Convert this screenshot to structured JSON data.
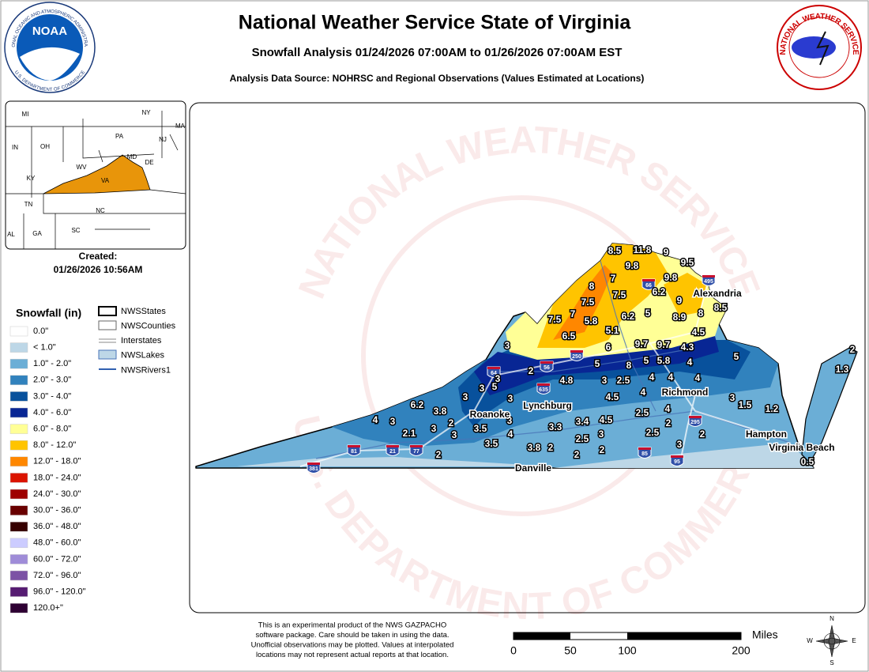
{
  "header": {
    "title": "National Weather Service State of Virginia",
    "subtitle": "Snowfall Analysis 01/24/2026 07:00AM to 01/26/2026 07:00AM EST",
    "source": "Analysis Data Source: NOHRSC and Regional Observations (Values Estimated at Locations)"
  },
  "logos": {
    "noaa": {
      "name": "NOAA",
      "ring_top": "NATIONAL OCEANIC AND ATMOSPHERIC ADMINISTRATION",
      "ring_bottom": "U.S. DEPARTMENT OF COMMERCE"
    },
    "nws": {
      "ring": "NATIONAL WEATHER SERVICE"
    }
  },
  "inset": {
    "states": [
      "MI",
      "NY",
      "MA",
      "IN",
      "OH",
      "PA",
      "NJ",
      "MD",
      "DE",
      "KY",
      "WV",
      "VA",
      "TN",
      "NC",
      "AL",
      "GA",
      "SC"
    ]
  },
  "created": {
    "label": "Created:",
    "datetime": "01/26/2026 10:56AM"
  },
  "legend": {
    "title": "Snowfall (in)",
    "items": [
      {
        "label": "0.0\"",
        "color": "#ffffff"
      },
      {
        "label": "< 1.0\"",
        "color": "#bdd7e7"
      },
      {
        "label": "1.0\" - 2.0\"",
        "color": "#6baed6"
      },
      {
        "label": "2.0\" - 3.0\"",
        "color": "#3182bd"
      },
      {
        "label": "3.0\" - 4.0\"",
        "color": "#08519c"
      },
      {
        "label": "4.0\" - 6.0\"",
        "color": "#082694"
      },
      {
        "label": "6.0\" - 8.0\"",
        "color": "#ffff96"
      },
      {
        "label": "8.0\" - 12.0\"",
        "color": "#ffc400"
      },
      {
        "label": "12.0\" - 18.0\"",
        "color": "#ff8700"
      },
      {
        "label": "18.0\" - 24.0\"",
        "color": "#db1400"
      },
      {
        "label": "24.0\" - 30.0\"",
        "color": "#9e0000"
      },
      {
        "label": "30.0\" - 36.0\"",
        "color": "#690000"
      },
      {
        "label": "36.0\" - 48.0\"",
        "color": "#360000"
      },
      {
        "label": "48.0\" - 60.0\"",
        "color": "#ccccff"
      },
      {
        "label": "60.0\" - 72.0\"",
        "color": "#9f8cd8"
      },
      {
        "label": "72.0\" - 96.0\"",
        "color": "#7c52a5"
      },
      {
        "label": "96.0\" - 120.0\"",
        "color": "#561c72"
      },
      {
        "label": "120.0+\"",
        "color": "#2e0033"
      }
    ]
  },
  "layers": [
    "NWSStates",
    "NWSCounties",
    "Interstates",
    "NWSLakes",
    "NWSRivers1"
  ],
  "map": {
    "watermark_top": "NATIONAL WEATHER SERVICE",
    "watermark_bottom": "U.S. DEPARTMENT OF COMMERCE",
    "observations": [
      8.5,
      11.8,
      9,
      9.5,
      9.8,
      9.8,
      8,
      7,
      6.2,
      9,
      7.5,
      7.5,
      8,
      8.5,
      7.5,
      7,
      5.8,
      6.2,
      5,
      8.9,
      6.5,
      5.1,
      4.5,
      3,
      6,
      9.7,
      9.7,
      4.3,
      5,
      2,
      1.3,
      5,
      8,
      5,
      5.8,
      4,
      2,
      3,
      4.8,
      3,
      2.5,
      4,
      4,
      4,
      3,
      5,
      3,
      4,
      4.5,
      3,
      6.2,
      3.8,
      3,
      4,
      3,
      2,
      2.5,
      4,
      1.5,
      1.2,
      2.1,
      3,
      3.5,
      3,
      3.4,
      4.5,
      3.3,
      3,
      4,
      2.5,
      3,
      2.5,
      2,
      2,
      3.5,
      3.8,
      2,
      2,
      2,
      2,
      3,
      0.5
    ],
    "cities": [
      "Alexandria",
      "Richmond",
      "Lynchburg",
      "Roanoke",
      "Hampton",
      "Virginia Beach",
      "Danville"
    ],
    "highways": [
      "495",
      "66",
      "56",
      "250",
      "64",
      "635",
      "295",
      "85",
      "95",
      "77",
      "21",
      "81",
      "381"
    ]
  },
  "disclaimer": [
    "This is an experimental product of the NWS GAZPACHO",
    "software package. Care should be taken in using the data.",
    "Unofficial observations may be plotted. Values at interpolated",
    "locations may not represent actual reports at that location."
  ],
  "scale": {
    "ticks": [
      0,
      50,
      100,
      200
    ],
    "unit": "Miles"
  },
  "compass": [
    "N",
    "E",
    "S",
    "W"
  ]
}
